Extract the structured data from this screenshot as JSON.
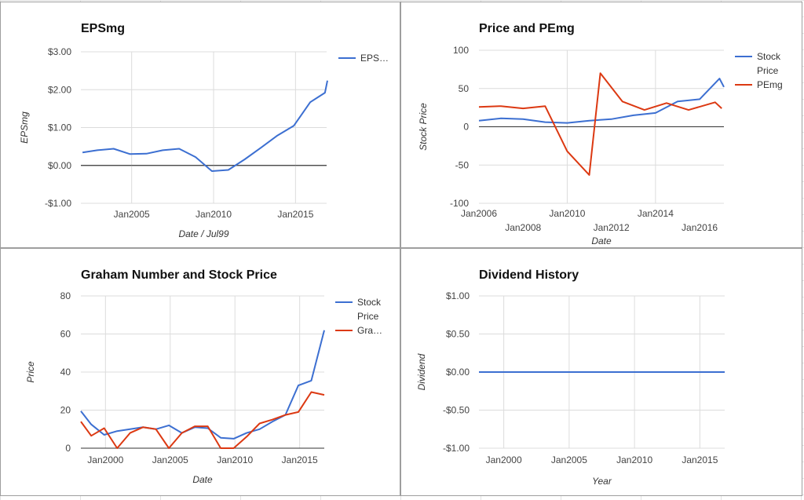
{
  "chart_data": [
    {
      "type": "line",
      "title": "EPSmg",
      "xlabel": "Date / Jul99",
      "ylabel": "EPSmg",
      "ylim": [
        -1,
        3
      ],
      "yticks": [
        3,
        2,
        1,
        0,
        -1
      ],
      "ytick_labels": [
        "$3.00",
        "$2.00",
        "$1.00",
        "$0.00",
        "-$1.00"
      ],
      "xlim": [
        2001.9,
        2016.9
      ],
      "xticks": [
        2005,
        2010,
        2015
      ],
      "xtick_labels": [
        "Jan2005",
        "Jan2010",
        "Jan2015"
      ],
      "vgrid": [
        2005,
        2010,
        2015
      ],
      "legend": "right",
      "series": [
        {
          "name": "EPS…",
          "color": "#3c6fd1",
          "x": [
            2002,
            2002.9,
            2003.9,
            2004.9,
            2005.9,
            2006.9,
            2007.9,
            2008.9,
            2009.9,
            2010.9,
            2011.9,
            2012.9,
            2013.9,
            2014.9,
            2015.9,
            2016.8,
            2016.95
          ],
          "y": [
            0.34,
            0.4,
            0.44,
            0.3,
            0.31,
            0.4,
            0.44,
            0.22,
            -0.15,
            -0.12,
            0.16,
            0.47,
            0.79,
            1.05,
            1.67,
            1.92,
            2.24
          ]
        }
      ]
    },
    {
      "type": "line",
      "title": "Price and PEmg",
      "xlabel": "Date",
      "ylabel": "Stock Price",
      "ylim": [
        -100,
        100
      ],
      "yticks": [
        100,
        50,
        0,
        -50,
        -100
      ],
      "ytick_labels": [
        "100",
        "50",
        "0",
        "-50",
        "-100"
      ],
      "xlim": [
        2006,
        2017.1
      ],
      "xticks_upper": [
        2006,
        2010,
        2014
      ],
      "xtick_labels_upper": [
        "Jan2006",
        "Jan2010",
        "Jan2014"
      ],
      "xticks_lower": [
        2008,
        2012,
        2016
      ],
      "xtick_labels_lower": [
        "Jan2008",
        "Jan2012",
        "Jan2016"
      ],
      "vgrid": [
        2010,
        2014
      ],
      "legend": "right",
      "series": [
        {
          "name": "Stock Price",
          "color": "#3c6fd1",
          "x": [
            2006,
            2007,
            2008,
            2009,
            2010,
            2011,
            2012,
            2013,
            2014,
            2015,
            2016,
            2016.9,
            2017.1
          ],
          "y": [
            8,
            11,
            10,
            6,
            5,
            8,
            10,
            15,
            18,
            33,
            36,
            63,
            52
          ]
        },
        {
          "name": "PEmg",
          "color": "#dc3912",
          "x": [
            2006,
            2007,
            2008,
            2009,
            2010,
            2011,
            2011.5,
            2012.5,
            2013.5,
            2014.5,
            2015.5,
            2016.7,
            2017
          ],
          "y": [
            26,
            27,
            24,
            27,
            -32,
            -63,
            70,
            33,
            22,
            31,
            22,
            32,
            24
          ]
        }
      ]
    },
    {
      "type": "line",
      "title": "Graham Number and Stock Price",
      "xlabel": "Date",
      "ylabel": "Price",
      "ylim": [
        0,
        80
      ],
      "yticks": [
        80,
        60,
        40,
        20,
        0
      ],
      "ytick_labels": [
        "80",
        "60",
        "40",
        "20",
        "0"
      ],
      "xlim": [
        1998.1,
        2016.9
      ],
      "xticks": [
        2000,
        2005,
        2010,
        2015
      ],
      "xtick_labels": [
        "Jan2000",
        "Jan2005",
        "Jan2010",
        "Jan2015"
      ],
      "vgrid": [
        2000,
        2005,
        2010,
        2015
      ],
      "legend": "right",
      "series": [
        {
          "name": "Stock Price",
          "color": "#3c6fd1",
          "x": [
            1998.1,
            1998.9,
            1999.9,
            2000.9,
            2001.9,
            2002.9,
            2003.9,
            2004.9,
            2005.9,
            2006.9,
            2007.9,
            2008.9,
            2009.9,
            2010.9,
            2011.9,
            2012.9,
            2013.9,
            2014.9,
            2015.9,
            2016.9
          ],
          "y": [
            19.5,
            12.5,
            7,
            9,
            10,
            11,
            10,
            12,
            8,
            11,
            10.5,
            5.5,
            5,
            8,
            10,
            14,
            17.5,
            33,
            35.5,
            62
          ]
        },
        {
          "name": "Gra…",
          "color": "#dc3912",
          "x": [
            1998.1,
            1998.9,
            1999.9,
            2000.9,
            2001.9,
            2002.9,
            2003.9,
            2004.9,
            2005.9,
            2006.9,
            2007.9,
            2008.9,
            2009.9,
            2010.9,
            2011.9,
            2012.9,
            2013.9,
            2014.9,
            2015.9,
            2016.9
          ],
          "y": [
            14,
            6.5,
            10.5,
            0,
            8,
            11,
            10,
            0,
            8,
            11.5,
            11.5,
            0,
            0,
            6,
            13,
            15,
            17.5,
            19,
            29.5,
            28
          ]
        }
      ]
    },
    {
      "type": "line",
      "title": "Dividend History",
      "xlabel": "Year",
      "ylabel": "Dividend",
      "ylim": [
        -1,
        1
      ],
      "yticks": [
        1,
        0.5,
        0,
        -0.5,
        -1
      ],
      "ytick_labels": [
        "$1.00",
        "$0.50",
        "$0.00",
        "-$0.50",
        "-$1.00"
      ],
      "xlim": [
        1998.1,
        2016.9
      ],
      "xticks": [
        2000,
        2005,
        2010,
        2015
      ],
      "xtick_labels": [
        "Jan2000",
        "Jan2005",
        "Jan2010",
        "Jan2015"
      ],
      "vgrid": [
        2000,
        2005,
        2010,
        2015
      ],
      "legend": "none",
      "series": [
        {
          "color": "#3c6fd1",
          "x": [
            1998.1,
            2016.9
          ],
          "y": [
            0,
            0
          ]
        }
      ]
    }
  ]
}
